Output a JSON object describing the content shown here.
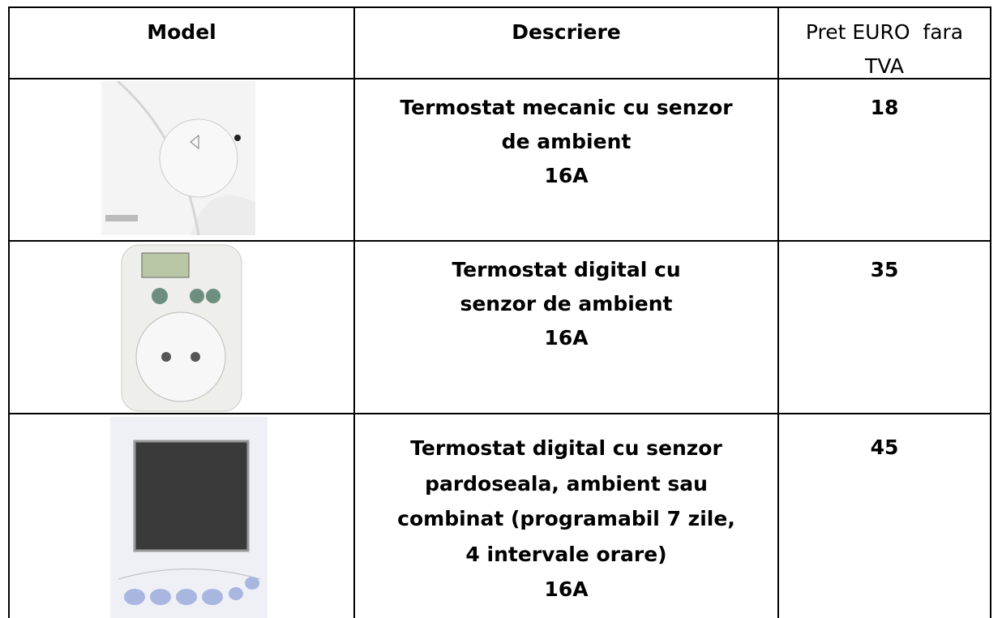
{
  "table": {
    "header": {
      "model": "Model",
      "description": "Descriere",
      "price": [
        "Pret EURO  fara",
        "TVA"
      ]
    },
    "rows": [
      {
        "description": [
          "Termostat mecanic cu senzor",
          "de ambient",
          "16A"
        ],
        "price": 18
      },
      {
        "description": [
          "Termostat digital cu",
          "senzor de ambient",
          "16A"
        ],
        "price": 35
      },
      {
        "description": [
          "Termostat digital cu senzor",
          "pardoseala, ambient sau",
          "combinat (programabil 7 zile,",
          "4 intervale orare)",
          "16A"
        ],
        "price": 45
      }
    ]
  }
}
